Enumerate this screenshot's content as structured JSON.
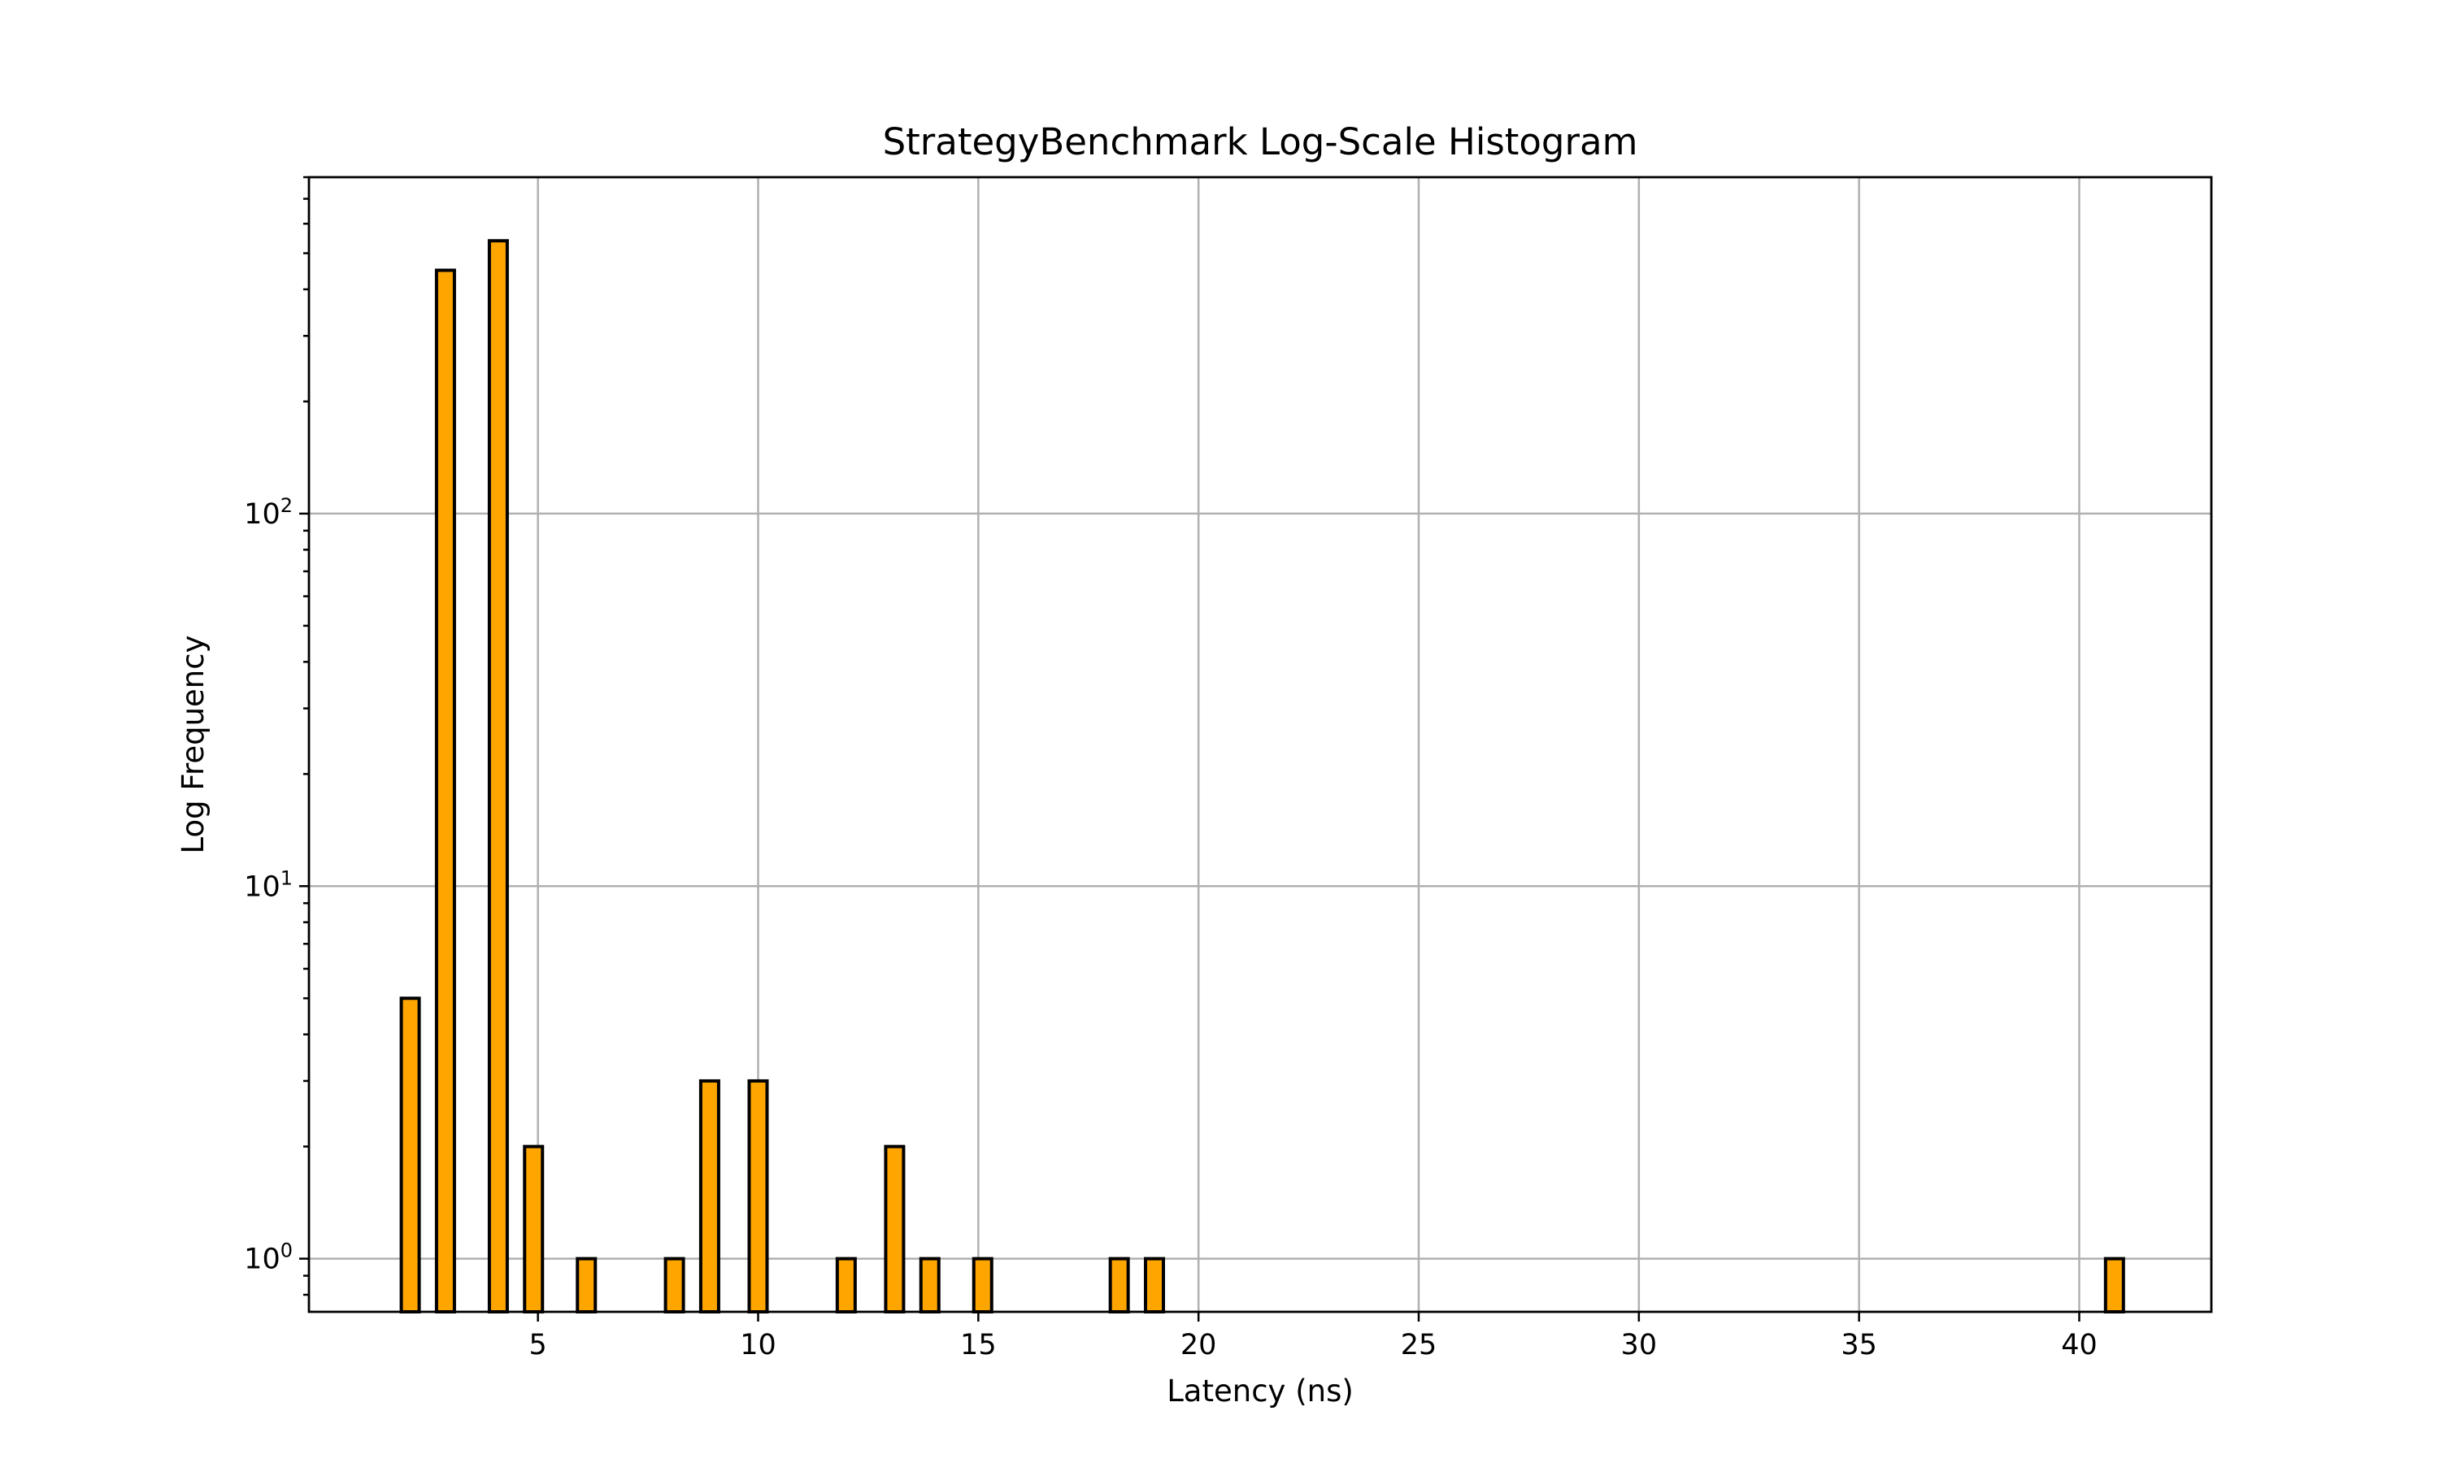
{
  "chart_data": {
    "type": "bar",
    "title": "StrategyBenchmark Log-Scale Histogram",
    "xlabel": "Latency (ns)",
    "ylabel": "Log Frequency",
    "y_scale": "log",
    "xlim": [
      -0.2,
      43.0
    ],
    "ylim": [
      0.72,
      800
    ],
    "grid": true,
    "bar_color": "#FFA500",
    "edge_color": "#000000",
    "x_ticks": [
      5,
      10,
      15,
      20,
      25,
      30,
      35,
      40
    ],
    "y_ticks": [
      {
        "value": 1,
        "base": "10",
        "exp": "0"
      },
      {
        "value": 10,
        "base": "10",
        "exp": "1"
      },
      {
        "value": 100,
        "base": "10",
        "exp": "2"
      }
    ],
    "bins": [
      {
        "x": 2.1,
        "count": 5
      },
      {
        "x": 2.9,
        "count": 450
      },
      {
        "x": 4.1,
        "count": 540
      },
      {
        "x": 4.9,
        "count": 2
      },
      {
        "x": 6.1,
        "count": 1
      },
      {
        "x": 8.1,
        "count": 1
      },
      {
        "x": 8.9,
        "count": 3
      },
      {
        "x": 10.0,
        "count": 3
      },
      {
        "x": 12.0,
        "count": 1
      },
      {
        "x": 13.1,
        "count": 2
      },
      {
        "x": 13.9,
        "count": 1
      },
      {
        "x": 15.1,
        "count": 1
      },
      {
        "x": 18.2,
        "count": 1
      },
      {
        "x": 19.0,
        "count": 1
      },
      {
        "x": 40.8,
        "count": 1
      }
    ]
  }
}
